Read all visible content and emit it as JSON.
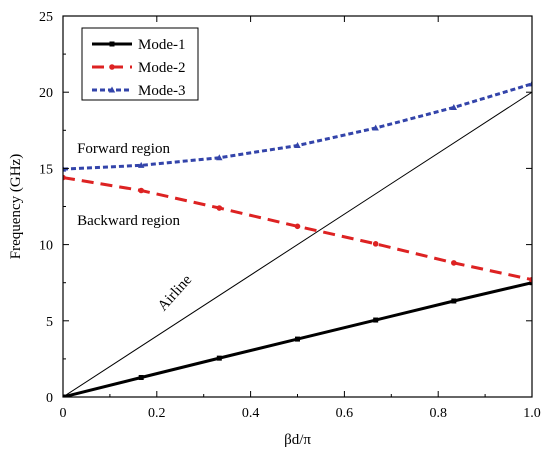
{
  "chart_data": {
    "type": "line",
    "xlabel": "βd/π",
    "ylabel": "Frequency (GHz)",
    "xlim": [
      0,
      1.0
    ],
    "ylim": [
      0,
      25
    ],
    "xticks": [
      0,
      0.2,
      0.4,
      0.6,
      0.8,
      1.0
    ],
    "xtick_labels": [
      "0",
      "0.2",
      "0.4",
      "0.6",
      "0.8",
      "1.0"
    ],
    "yticks": [
      0,
      5,
      10,
      15,
      20,
      25
    ],
    "ytick_labels": [
      "0",
      "5",
      "10",
      "15",
      "20",
      "25"
    ],
    "grid": false,
    "legend_position": "top-left",
    "series": [
      {
        "name": "Mode-1",
        "color": "#000000",
        "line_style": "solid",
        "marker": "square",
        "x": [
          0,
          0.1667,
          0.3333,
          0.5,
          0.6667,
          0.8333,
          1.0
        ],
        "y": [
          0,
          1.28,
          2.55,
          3.8,
          5.05,
          6.3,
          7.5
        ]
      },
      {
        "name": "Mode-2",
        "color": "#dd2222",
        "line_style": "dashed",
        "marker": "circle",
        "x": [
          0,
          0.1667,
          0.3333,
          0.5,
          0.6667,
          0.8333,
          1.0
        ],
        "y": [
          14.4,
          13.55,
          12.4,
          11.2,
          10.05,
          8.8,
          7.7
        ]
      },
      {
        "name": "Mode-3",
        "color": "#3344aa",
        "line_style": "dotted",
        "marker": "triangle",
        "x": [
          0,
          0.1667,
          0.3333,
          0.5,
          0.6667,
          0.8333,
          1.0
        ],
        "y": [
          14.95,
          15.2,
          15.7,
          16.5,
          17.65,
          19.0,
          20.55
        ]
      }
    ],
    "reference_line": {
      "label": "Airline",
      "x": [
        0,
        1.0
      ],
      "y": [
        0,
        20
      ]
    },
    "annotations": [
      {
        "text": "Forward region",
        "x": 0.03,
        "y": 16.0
      },
      {
        "text": "Backward region",
        "x": 0.03,
        "y": 11.3
      },
      {
        "text": "Airline",
        "x": 0.215,
        "y": 5.6,
        "rotation_deg": -48
      }
    ]
  }
}
